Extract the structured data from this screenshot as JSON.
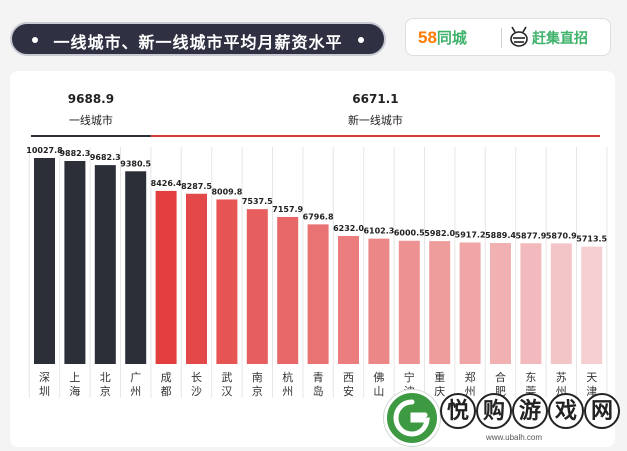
{
  "header": {
    "title": "一线城市、新一线城市平均月薪资水平",
    "brand_58": "58",
    "brand_name": "同城",
    "brand_app": "赶集直招",
    "mascot_icon": "bee-mascot-icon"
  },
  "colors": {
    "tier1": "#2c2e38",
    "tier2_gradient_start": "#e33f3f",
    "tier2_gradient_end": "#f5cfd1",
    "divider": "#d93a3a"
  },
  "chart_data": {
    "type": "bar",
    "categories": [
      "深圳",
      "上海",
      "北京",
      "广州",
      "成都",
      "长沙",
      "武汉",
      "南京",
      "杭州",
      "青岛",
      "西安",
      "佛山",
      "宁波",
      "重庆",
      "郑州",
      "合肥",
      "东莞",
      "苏州",
      "天津"
    ],
    "values": [
      10027.8,
      9882.3,
      9682.3,
      9380.5,
      8426.4,
      8287.5,
      8009.8,
      7537.5,
      7157.9,
      6796.8,
      6232.0,
      6102.3,
      6000.5,
      5982.0,
      5917.2,
      5889.4,
      5877.9,
      5870.9,
      5713.5
    ],
    "value_labels": [
      "10027.8",
      "9882.3",
      "9682.3",
      "9380.5",
      "8426.4",
      "8287.5",
      "8009.8",
      "7537.5",
      "7157.9",
      "6796.8",
      "6232.0",
      "6102.3",
      "6000.5",
      "5982.0",
      "5917.2",
      "5889.4",
      "5877.9",
      "5870.9",
      "5713.5"
    ],
    "groups": [
      {
        "name": "一线城市",
        "average": "9688.9",
        "count": 4
      },
      {
        "name": "新一线城市",
        "average": "6671.1",
        "count": 15
      }
    ],
    "ylim": [
      0,
      10500
    ],
    "grid": true,
    "vertical_labels": true
  },
  "watermark": {
    "chars": [
      "悦",
      "购",
      "游",
      "戏",
      "网"
    ],
    "url": "www.ubalh.com"
  }
}
